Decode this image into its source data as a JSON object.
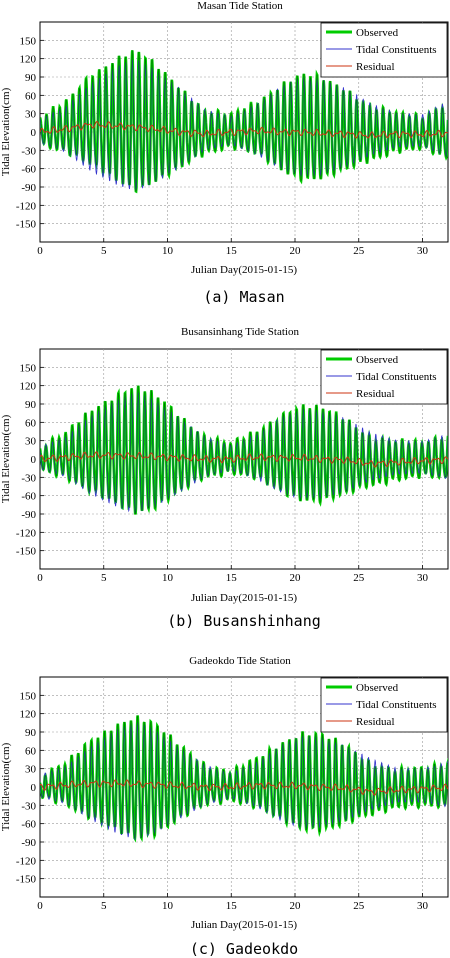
{
  "figure": {
    "captions": [
      "(a) Masan",
      "(b) Busanshinhang",
      "(c) Gadeokdo"
    ]
  },
  "colors": {
    "observed": "#00cc00",
    "observed_dark": "#006b00",
    "tidal": "#3333cc",
    "residual": "#cc3311",
    "grid": "#9a9a9a"
  },
  "chart_data": [
    {
      "type": "line",
      "title": "Masan Tide Station",
      "xlabel": "Julian Day(2015-01-15)",
      "ylabel": "Tidal Elevation(cm)",
      "xlim": [
        0,
        32
      ],
      "ylim": [
        -180,
        180
      ],
      "xticks": [
        0,
        5,
        10,
        15,
        20,
        25,
        30
      ],
      "yticks": [
        -150,
        -120,
        -90,
        -60,
        -30,
        0,
        30,
        60,
        90,
        120,
        150
      ],
      "grid": true,
      "legend_position": "top-right",
      "series": [
        {
          "name": "Observed",
          "color": "#00cc00",
          "description_values": {
            "x": [
              0,
              2,
              4,
              6,
              7.5,
              9,
              11,
              13,
              15,
              17,
              19,
              20.5,
              22,
              24,
              26,
              28,
              30,
              32
            ],
            "amplitude": [
              22,
              40,
              78,
              105,
              118,
              100,
              70,
              35,
              25,
              45,
              75,
              88,
              85,
              70,
              45,
              30,
              28,
              50
            ],
            "mean": [
              0,
              5,
              12,
              10,
              8,
              5,
              0,
              -3,
              0,
              2,
              0,
              0,
              -2,
              -3,
              -6,
              -3,
              -4,
              -2
            ]
          }
        },
        {
          "name": "Tidal Constituents",
          "color": "#3333cc"
        },
        {
          "name": "Residual",
          "color": "#cc3311"
        }
      ]
    },
    {
      "type": "line",
      "title": "Busansinhang Tide Station",
      "xlabel": "Julian Day(2015-01-15)",
      "ylabel": "Tidal Elevation(cm)",
      "xlim": [
        0,
        32
      ],
      "ylim": [
        -180,
        180
      ],
      "xticks": [
        0,
        5,
        10,
        15,
        20,
        25,
        30
      ],
      "yticks": [
        -150,
        -120,
        -90,
        -60,
        -30,
        0,
        30,
        60,
        90,
        120,
        150
      ],
      "grid": true,
      "legend_position": "top-right",
      "series": [
        {
          "name": "Observed",
          "color": "#00cc00",
          "description_values": {
            "x": [
              0,
              2,
              4,
              6,
              7.5,
              9,
              11,
              13,
              15,
              17,
              19,
              20.5,
              22,
              24,
              26,
              28,
              30,
              32
            ],
            "amplitude": [
              20,
              35,
              70,
              95,
              108,
              95,
              65,
              35,
              22,
              40,
              68,
              80,
              78,
              65,
              42,
              30,
              28,
              40
            ],
            "mean": [
              0,
              3,
              6,
              6,
              5,
              4,
              2,
              0,
              0,
              3,
              2,
              2,
              0,
              -2,
              -8,
              -5,
              -3,
              -1
            ]
          }
        },
        {
          "name": "Tidal Constituents",
          "color": "#3333cc"
        },
        {
          "name": "Residual",
          "color": "#cc3311"
        }
      ]
    },
    {
      "type": "line",
      "title": "Gadeokdo Tide Station",
      "xlabel": "Julian Day(2015-01-15)",
      "ylabel": "Tidal Elevation(cm)",
      "xlim": [
        0,
        32
      ],
      "ylim": [
        -180,
        180
      ],
      "xticks": [
        0,
        5,
        10,
        15,
        20,
        25,
        30
      ],
      "yticks": [
        -150,
        -120,
        -90,
        -60,
        -30,
        0,
        30,
        60,
        90,
        120,
        150
      ],
      "grid": true,
      "legend_position": "top-right",
      "series": [
        {
          "name": "Observed",
          "color": "#00cc00",
          "description_values": {
            "x": [
              0,
              2,
              4,
              6,
              7.5,
              9,
              11,
              13,
              15,
              17,
              19,
              20.5,
              22,
              24,
              26,
              28,
              30,
              32
            ],
            "amplitude": [
              20,
              33,
              65,
              92,
              105,
              92,
              62,
              35,
              22,
              40,
              68,
              82,
              80,
              66,
              45,
              30,
              30,
              40
            ],
            "mean": [
              0,
              3,
              6,
              6,
              5,
              4,
              2,
              0,
              0,
              3,
              2,
              2,
              0,
              -2,
              -8,
              -5,
              -3,
              -1
            ]
          }
        },
        {
          "name": "Tidal Constituents",
          "color": "#3333cc"
        },
        {
          "name": "Residual",
          "color": "#cc3311"
        }
      ]
    }
  ]
}
